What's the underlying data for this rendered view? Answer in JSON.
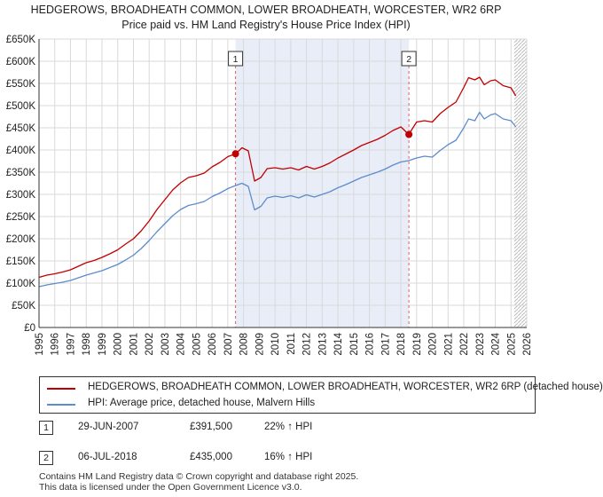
{
  "title": {
    "line1": "HEDGEROWS, BROADHEATH COMMON, LOWER BROADHEATH, WORCESTER, WR2 6RP",
    "line2": "Price paid vs. HM Land Registry's House Price Index (HPI)"
  },
  "colors": {
    "property": "#c00000",
    "hpi": "#5b8ccc",
    "shade": "#e8edf8",
    "grid": "#d9d9d9",
    "marker_line": "#e06060"
  },
  "chart_data": {
    "type": "line",
    "title": "Price paid vs. HM Land Registry's House Price Index (HPI)",
    "xlim": [
      1995,
      2026
    ],
    "ylim": [
      0,
      650000
    ],
    "x_ticks": [
      1995,
      1996,
      1997,
      1998,
      1999,
      2000,
      2001,
      2002,
      2003,
      2004,
      2005,
      2006,
      2007,
      2008,
      2009,
      2010,
      2011,
      2012,
      2013,
      2014,
      2015,
      2016,
      2017,
      2018,
      2019,
      2020,
      2021,
      2022,
      2023,
      2024,
      2025,
      2026
    ],
    "y_ticks": [
      0,
      50000,
      100000,
      150000,
      200000,
      250000,
      300000,
      350000,
      400000,
      450000,
      500000,
      550000,
      600000,
      650000
    ],
    "y_tick_labels": [
      "£0",
      "£50K",
      "£100K",
      "£150K",
      "£200K",
      "£250K",
      "£300K",
      "£350K",
      "£400K",
      "£450K",
      "£500K",
      "£550K",
      "£600K",
      "£650K"
    ],
    "grid": true,
    "shaded_range": [
      2007.49,
      2018.51
    ],
    "future_hatch_from": 2025.2,
    "series": [
      {
        "name": "HEDGEROWS, BROADHEATH COMMON, LOWER BROADHEATH, WORCESTER, WR2 6RP (detached house)",
        "color": "#c00000",
        "x": [
          1995,
          1995.5,
          1996,
          1996.5,
          1997,
          1997.5,
          1998,
          1998.5,
          1999,
          1999.5,
          2000,
          2000.5,
          2001,
          2001.5,
          2002,
          2002.5,
          2003,
          2003.5,
          2004,
          2004.5,
          2005,
          2005.5,
          2006,
          2006.5,
          2007,
          2007.5,
          2007.9,
          2008.3,
          2008.7,
          2009.1,
          2009.5,
          2010,
          2010.5,
          2011,
          2011.5,
          2012,
          2012.5,
          2013,
          2013.5,
          2014,
          2014.5,
          2015,
          2015.5,
          2016,
          2016.5,
          2017,
          2017.5,
          2018,
          2018.5,
          2019,
          2019.5,
          2020,
          2020.5,
          2021,
          2021.5,
          2022,
          2022.3,
          2022.7,
          2023,
          2023.3,
          2023.7,
          2024,
          2024.5,
          2025,
          2025.3
        ],
        "y": [
          113000,
          118000,
          121000,
          125000,
          130000,
          138000,
          146000,
          151000,
          158000,
          166000,
          175000,
          188000,
          200000,
          218000,
          240000,
          266000,
          288000,
          310000,
          326000,
          338000,
          342000,
          348000,
          362000,
          372000,
          385000,
          391500,
          405000,
          398000,
          330000,
          338000,
          358000,
          360000,
          357000,
          360000,
          355000,
          363000,
          357000,
          363000,
          371000,
          382000,
          391000,
          400000,
          410000,
          417000,
          424000,
          433000,
          444000,
          452000,
          435000,
          463000,
          466000,
          463000,
          482000,
          496000,
          508000,
          541000,
          563000,
          558000,
          564000,
          547000,
          556000,
          558000,
          545000,
          540000,
          522000
        ]
      },
      {
        "name": "HPI: Average price, detached house, Malvern Hills",
        "color": "#5b8ccc",
        "x": [
          1995,
          1995.5,
          1996,
          1996.5,
          1997,
          1997.5,
          1998,
          1998.5,
          1999,
          1999.5,
          2000,
          2000.5,
          2001,
          2001.5,
          2002,
          2002.5,
          2003,
          2003.5,
          2004,
          2004.5,
          2005,
          2005.5,
          2006,
          2006.5,
          2007,
          2007.5,
          2007.9,
          2008.3,
          2008.7,
          2009.1,
          2009.5,
          2010,
          2010.5,
          2011,
          2011.5,
          2012,
          2012.5,
          2013,
          2013.5,
          2014,
          2014.5,
          2015,
          2015.5,
          2016,
          2016.5,
          2017,
          2017.5,
          2018,
          2018.5,
          2019,
          2019.5,
          2020,
          2020.5,
          2021,
          2021.5,
          2022,
          2022.3,
          2022.7,
          2023,
          2023.3,
          2023.7,
          2024,
          2024.5,
          2025,
          2025.3
        ],
        "y": [
          92000,
          96000,
          99000,
          102000,
          106000,
          112000,
          118000,
          123000,
          128000,
          135000,
          142000,
          152000,
          163000,
          178000,
          196000,
          216000,
          234000,
          252000,
          266000,
          275000,
          279000,
          284000,
          295000,
          303000,
          313000,
          320000,
          325000,
          318000,
          265000,
          273000,
          292000,
          296000,
          293000,
          297000,
          292000,
          299000,
          294000,
          300000,
          306000,
          315000,
          322000,
          330000,
          338000,
          344000,
          350000,
          357000,
          366000,
          373000,
          376000,
          382000,
          386000,
          384000,
          399000,
          412000,
          422000,
          450000,
          470000,
          466000,
          485000,
          470000,
          479000,
          482000,
          470000,
          466000,
          452000
        ]
      }
    ],
    "sales": [
      {
        "label": "1",
        "x": 2007.49,
        "y": 391500
      },
      {
        "label": "2",
        "x": 2018.51,
        "y": 435000
      }
    ]
  },
  "legend": {
    "property_label": "HEDGEROWS, BROADHEATH COMMON, LOWER BROADHEATH, WORCESTER, WR2 6RP (detached house)",
    "hpi_label": "HPI: Average price, detached house, Malvern Hills"
  },
  "sales_table": [
    {
      "num": "1",
      "date": "29-JUN-2007",
      "price": "£391,500",
      "hpi": "22% ↑ HPI"
    },
    {
      "num": "2",
      "date": "06-JUL-2018",
      "price": "£435,000",
      "hpi": "16% ↑ HPI"
    }
  ],
  "footer": {
    "line1": "Contains HM Land Registry data © Crown copyright and database right 2025.",
    "line2": "This data is licensed under the Open Government Licence v3.0."
  }
}
